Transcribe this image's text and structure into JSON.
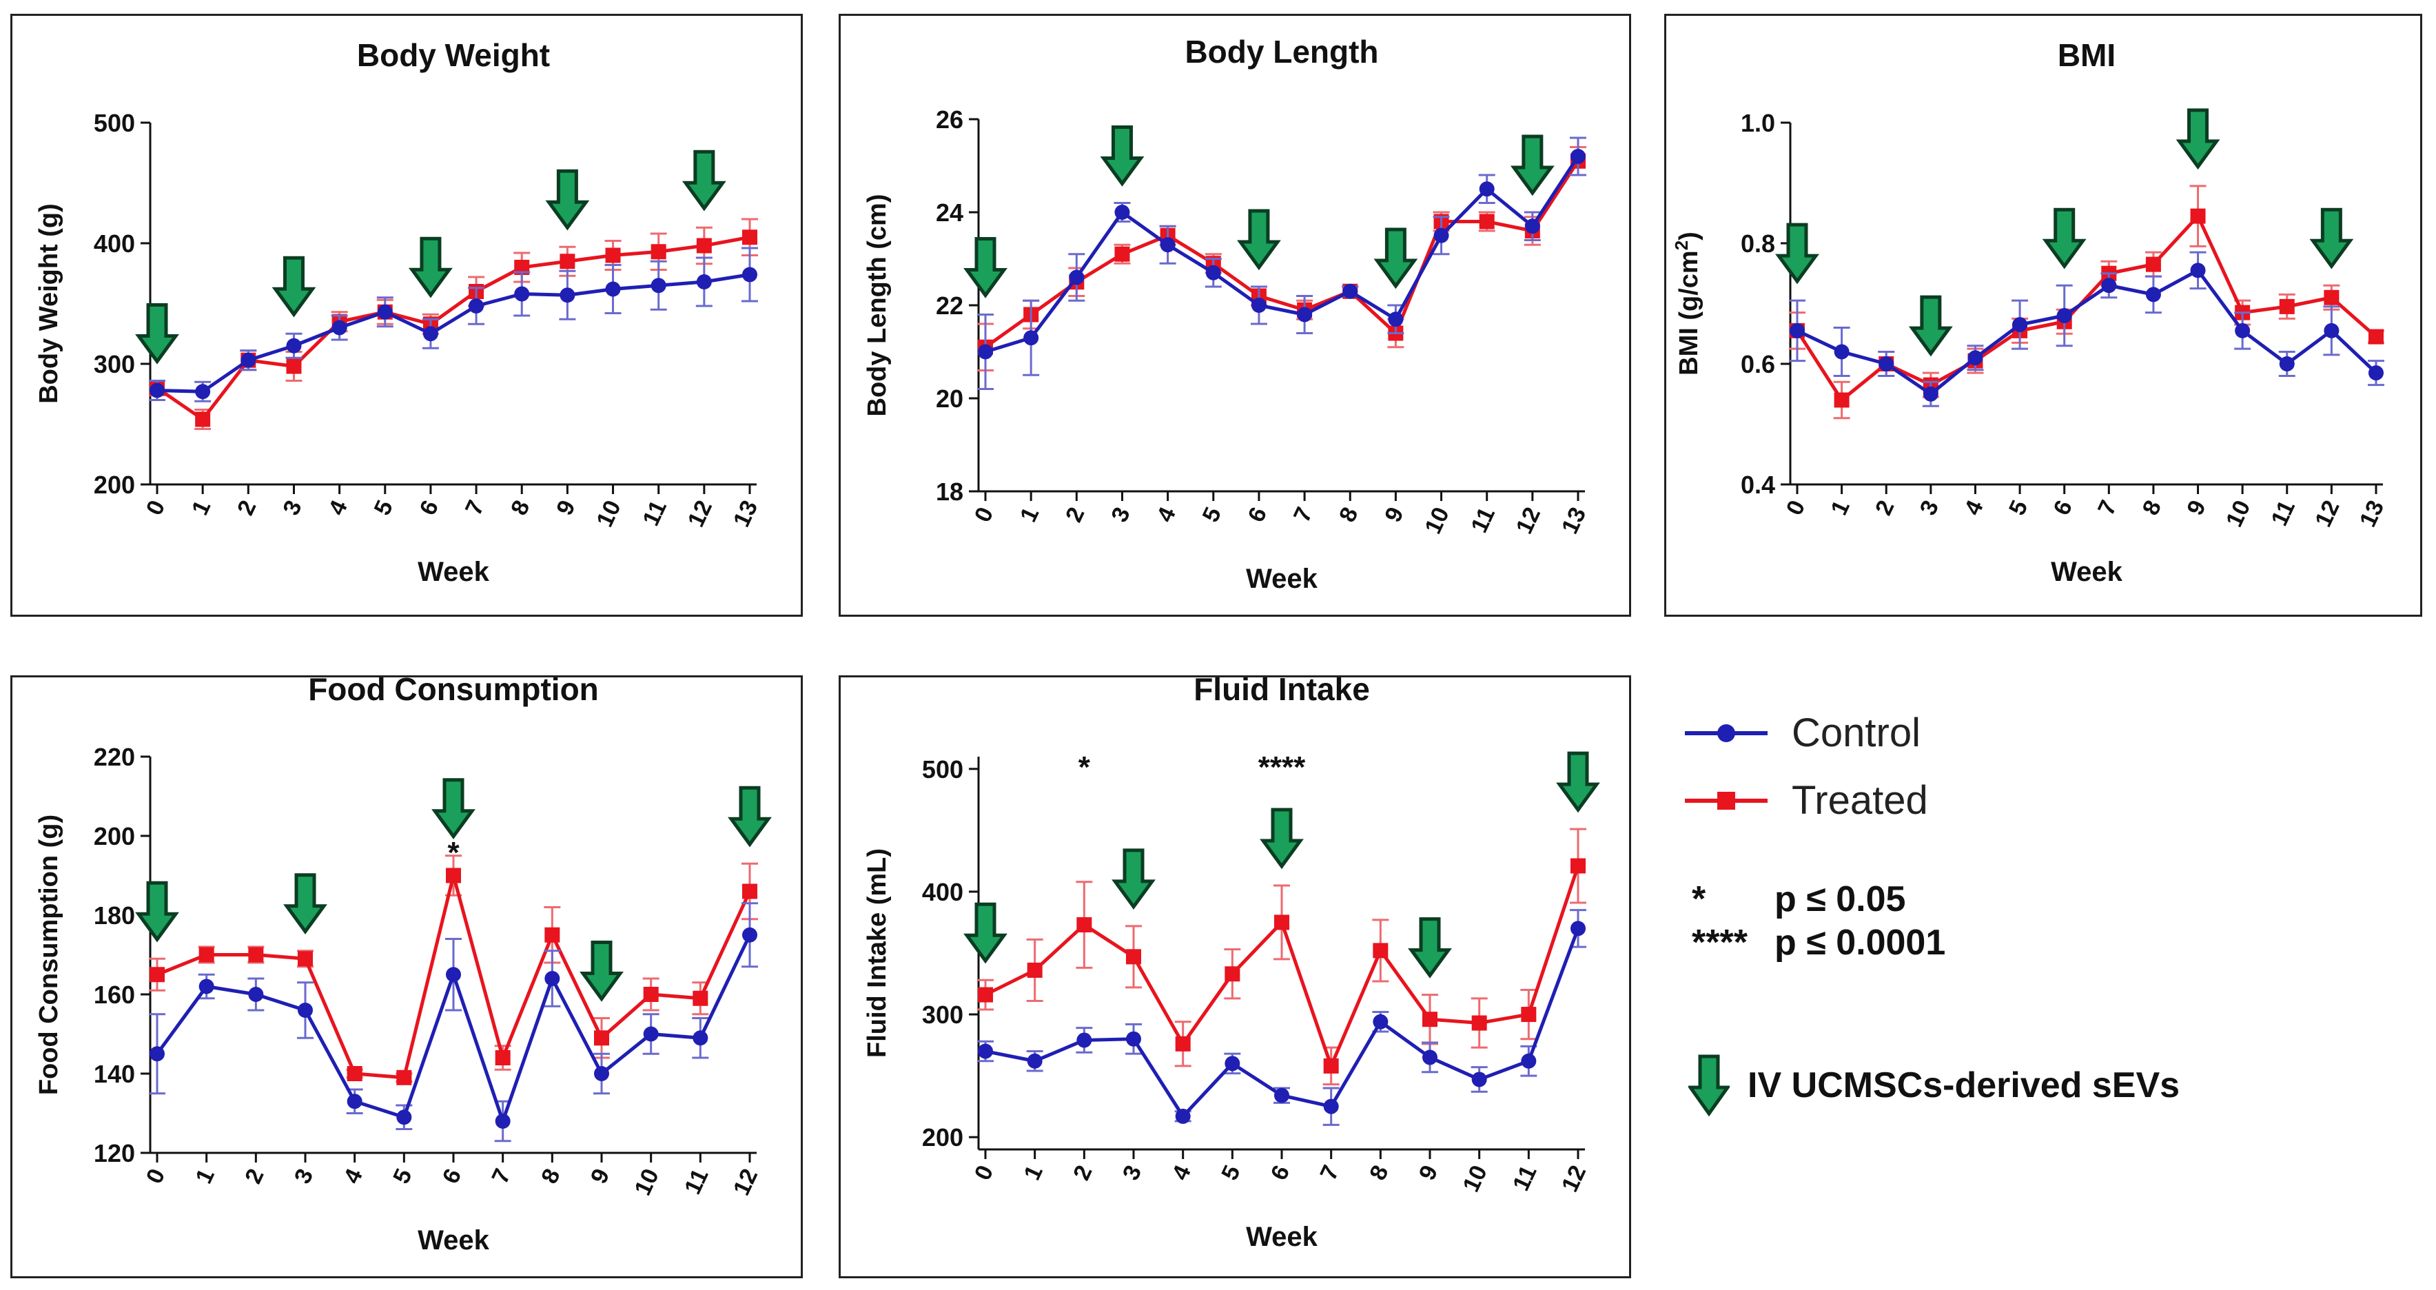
{
  "colors": {
    "control": "#1f1fb4",
    "treated": "#e8141e",
    "arrow_fill": "#1aa05a",
    "arrow_stroke": "#0b3d22"
  },
  "legend": {
    "control_label": "Control",
    "treated_label": "Treated",
    "sig1_stars": "*",
    "sig1_text": "p ≤ 0.05",
    "sig2_stars": "****",
    "sig2_text": "p ≤ 0.0001",
    "arrow_label": "IV UCMSCs-derived sEVs"
  },
  "chart_data": [
    {
      "id": "body-weight",
      "type": "line",
      "title": "Body Weight",
      "xlabel": "Week",
      "ylabel": "Body Weight (g)",
      "ylabel_sup": "",
      "ylabel_tail": "",
      "categories": [
        "0",
        "1",
        "2",
        "3",
        "4",
        "5",
        "6",
        "7",
        "8",
        "9",
        "10",
        "11",
        "12",
        "13"
      ],
      "ylim": [
        200,
        500
      ],
      "yticks": [
        200,
        300,
        400,
        500
      ],
      "ytick_labels": [
        "200",
        "300",
        "400",
        "500"
      ],
      "series": [
        {
          "name": "Control",
          "values": [
            278,
            277,
            303,
            315,
            330,
            343,
            325,
            348,
            358,
            357,
            362,
            365,
            368,
            374
          ],
          "errors": [
            8,
            8,
            8,
            10,
            10,
            12,
            12,
            15,
            18,
            20,
            20,
            20,
            20,
            22
          ]
        },
        {
          "name": "Treated",
          "values": [
            280,
            254,
            303,
            298,
            335,
            343,
            333,
            360,
            380,
            385,
            390,
            393,
            398,
            405
          ],
          "errors": [
            6,
            8,
            8,
            12,
            8,
            10,
            8,
            12,
            12,
            12,
            12,
            15,
            15,
            15
          ]
        }
      ],
      "arrows_at": [
        0,
        3,
        6,
        9,
        12
      ],
      "annotations": []
    },
    {
      "id": "body-length",
      "type": "line",
      "title": "Body Length",
      "xlabel": "Week",
      "ylabel": "Body Length (cm)",
      "ylabel_sup": "",
      "ylabel_tail": "",
      "categories": [
        "0",
        "1",
        "2",
        "3",
        "4",
        "5",
        "6",
        "7",
        "8",
        "9",
        "10",
        "11",
        "12",
        "13"
      ],
      "ylim": [
        18,
        26
      ],
      "yticks": [
        18,
        20,
        22,
        24,
        26
      ],
      "ytick_labels": [
        "18",
        "20",
        "22",
        "24",
        "26"
      ],
      "series": [
        {
          "name": "Control",
          "values": [
            21.0,
            21.3,
            22.6,
            24.0,
            23.3,
            22.7,
            22.0,
            21.8,
            22.3,
            21.7,
            23.5,
            24.5,
            23.7,
            25.2
          ],
          "errors": [
            0.8,
            0.8,
            0.5,
            0.2,
            0.4,
            0.3,
            0.4,
            0.4,
            0.1,
            0.3,
            0.4,
            0.3,
            0.3,
            0.4
          ]
        },
        {
          "name": "Treated",
          "values": [
            21.1,
            21.8,
            22.5,
            23.1,
            23.5,
            22.9,
            22.2,
            21.9,
            22.3,
            21.4,
            23.8,
            23.8,
            23.6,
            25.1
          ],
          "errors": [
            0.5,
            0.3,
            0.3,
            0.2,
            0.2,
            0.2,
            0.2,
            0.2,
            0.1,
            0.3,
            0.2,
            0.2,
            0.3,
            0.3
          ]
        }
      ],
      "arrows_at": [
        0,
        3,
        6,
        9,
        12
      ],
      "annotations": []
    },
    {
      "id": "bmi",
      "type": "line",
      "title": "BMI",
      "xlabel": "Week",
      "ylabel": "BMI (g/cm",
      "ylabel_sup": "2",
      "ylabel_tail": ")",
      "categories": [
        "0",
        "1",
        "2",
        "3",
        "4",
        "5",
        "6",
        "7",
        "8",
        "9",
        "10",
        "11",
        "12",
        "13"
      ],
      "ylim": [
        0.4,
        1.0
      ],
      "yticks": [
        0.4,
        0.6,
        0.8,
        1.0
      ],
      "ytick_labels": [
        "0.4",
        "0.6",
        "0.8",
        "1.0"
      ],
      "series": [
        {
          "name": "Control",
          "values": [
            0.655,
            0.62,
            0.6,
            0.55,
            0.61,
            0.665,
            0.68,
            0.73,
            0.715,
            0.755,
            0.655,
            0.6,
            0.655,
            0.585
          ],
          "errors": [
            0.05,
            0.04,
            0.02,
            0.02,
            0.02,
            0.04,
            0.05,
            0.02,
            0.03,
            0.03,
            0.03,
            0.02,
            0.04,
            0.02
          ]
        },
        {
          "name": "Treated",
          "values": [
            0.655,
            0.54,
            0.6,
            0.565,
            0.605,
            0.655,
            0.67,
            0.75,
            0.765,
            0.845,
            0.685,
            0.695,
            0.71,
            0.645
          ],
          "errors": [
            0.03,
            0.03,
            0.02,
            0.02,
            0.02,
            0.02,
            0.02,
            0.02,
            0.02,
            0.05,
            0.02,
            0.02,
            0.02,
            0.01
          ]
        }
      ],
      "arrows_at": [
        0,
        3,
        6,
        9,
        12
      ],
      "annotations": []
    },
    {
      "id": "food-consumption",
      "type": "line",
      "title": "Food Consumption",
      "xlabel": "Week",
      "ylabel": "Food Consumption (g)",
      "ylabel_sup": "",
      "ylabel_tail": "",
      "categories": [
        "0",
        "1",
        "2",
        "3",
        "4",
        "5",
        "6",
        "7",
        "8",
        "9",
        "10",
        "11",
        "12"
      ],
      "ylim": [
        120,
        220
      ],
      "yticks": [
        120,
        140,
        160,
        180,
        200,
        220
      ],
      "ytick_labels": [
        "120",
        "140",
        "160",
        "180",
        "200",
        "220"
      ],
      "series": [
        {
          "name": "Control",
          "values": [
            145,
            162,
            160,
            156,
            133,
            129,
            165,
            128,
            164,
            140,
            150,
            149,
            175
          ],
          "errors": [
            10,
            3,
            4,
            7,
            3,
            3,
            9,
            5,
            7,
            5,
            5,
            5,
            8
          ]
        },
        {
          "name": "Treated",
          "values": [
            165,
            170,
            170,
            169,
            140,
            139,
            190,
            144,
            175,
            149,
            160,
            159,
            186
          ],
          "errors": [
            4,
            2,
            2,
            2,
            1,
            1,
            5,
            3,
            7,
            5,
            4,
            4,
            7
          ]
        }
      ],
      "arrows_at": [
        0,
        3,
        6,
        9,
        12
      ],
      "annotations": [
        {
          "x_index": 6,
          "text": "*"
        }
      ]
    },
    {
      "id": "fluid-intake",
      "type": "line",
      "title": "Fluid Intake",
      "xlabel": "Week",
      "ylabel": "Fluid Intake (mL)",
      "ylabel_sup": "",
      "ylabel_tail": "",
      "categories": [
        "0",
        "1",
        "2",
        "3",
        "4",
        "5",
        "6",
        "7",
        "8",
        "9",
        "10",
        "11",
        "12"
      ],
      "ylim": [
        190,
        510
      ],
      "yticks": [
        200,
        300,
        400,
        500
      ],
      "ytick_labels": [
        "200",
        "300",
        "400",
        "500"
      ],
      "series": [
        {
          "name": "Control",
          "values": [
            270,
            262,
            279,
            280,
            217,
            260,
            234,
            225,
            294,
            265,
            247,
            262,
            370
          ],
          "errors": [
            8,
            8,
            10,
            12,
            4,
            8,
            6,
            15,
            8,
            12,
            10,
            12,
            15
          ]
        },
        {
          "name": "Treated",
          "values": [
            316,
            336,
            373,
            347,
            276,
            333,
            375,
            258,
            352,
            296,
            293,
            300,
            421
          ],
          "errors": [
            12,
            25,
            35,
            25,
            18,
            20,
            30,
            15,
            25,
            20,
            20,
            20,
            30
          ]
        }
      ],
      "arrows_at": [
        0,
        3,
        6,
        9,
        12
      ],
      "annotations": [
        {
          "x_index": 2,
          "text": "*"
        },
        {
          "x_index": 6,
          "text": "****"
        }
      ]
    }
  ]
}
